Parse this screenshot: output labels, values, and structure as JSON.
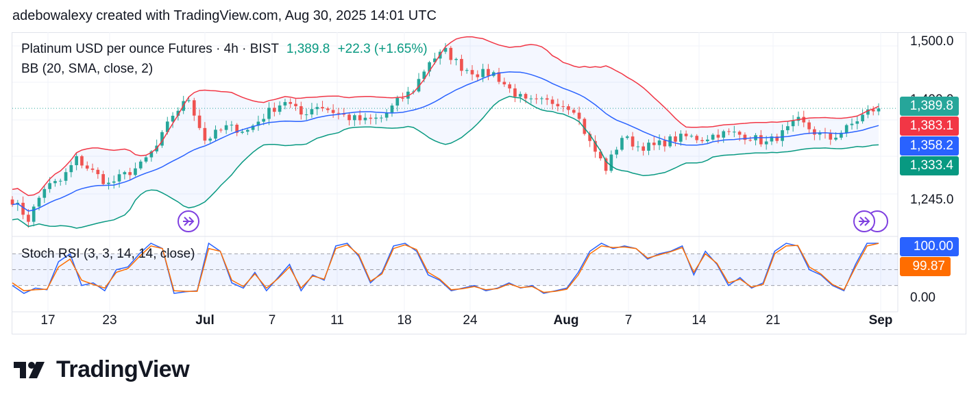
{
  "header": {
    "caption": "adebowalexy created with TradingView.com, Aug 30, 2025 14:01 UTC"
  },
  "legend": {
    "symbol": "Platinum USD per ounce Futures · 4h · BIST",
    "last": "1,389.8",
    "change": "+22.3 (+1.65%)",
    "bb": "BB (20, SMA, close, 2)",
    "stoch": "Stoch RSI (3, 3, 14, 14, close)"
  },
  "price_scale": {
    "top": "1,500.0",
    "mid": "1,400.0",
    "bottom": "1,245.0"
  },
  "price_tags": [
    {
      "label": "1,389.8",
      "color": "#26a69a"
    },
    {
      "label": "1,383.1",
      "color": "#f23645"
    },
    {
      "label": "1,358.2",
      "color": "#2962ff"
    },
    {
      "label": "1,333.4",
      "color": "#089981"
    }
  ],
  "stoch_scale": {
    "bottom": "0.00"
  },
  "stoch_tags": [
    {
      "label": "100.00",
      "color": "#2962ff"
    },
    {
      "label": "99.87",
      "color": "#ff6d00"
    }
  ],
  "time_labels": [
    "17",
    "23",
    "Jul",
    "7",
    "11",
    "18",
    "24",
    "Aug",
    "7",
    "14",
    "21",
    "Sep"
  ],
  "logo": {
    "text": "TradingView"
  },
  "colors": {
    "up": "#26a69a",
    "down": "#ef5350",
    "bb_upper": "#f23645",
    "bb_basis": "#2962ff",
    "bb_lower": "#089981",
    "stoch_k": "#2962ff",
    "stoch_d": "#ff6d00"
  },
  "chart_data": [
    {
      "type": "candlestick",
      "title": "Platinum USD per ounce Futures · 4h · BIST",
      "x_range": [
        "Jun 14, 2025",
        "Aug 30, 2025"
      ],
      "ylim": [
        1190,
        1510
      ],
      "close_path": [
        [
          0,
          1245
        ],
        [
          3,
          1215
        ],
        [
          6,
          1265
        ],
        [
          9,
          1275
        ],
        [
          12,
          1310
        ],
        [
          15,
          1290
        ],
        [
          18,
          1270
        ],
        [
          21,
          1285
        ],
        [
          24,
          1300
        ],
        [
          27,
          1330
        ],
        [
          30,
          1380
        ],
        [
          33,
          1405
        ],
        [
          36,
          1340
        ],
        [
          40,
          1360
        ],
        [
          44,
          1355
        ],
        [
          48,
          1385
        ],
        [
          51,
          1402
        ],
        [
          54,
          1380
        ],
        [
          57,
          1395
        ],
        [
          60,
          1385
        ],
        [
          63,
          1375
        ],
        [
          66,
          1370
        ],
        [
          69,
          1375
        ],
        [
          72,
          1400
        ],
        [
          75,
          1420
        ],
        [
          78,
          1465
        ],
        [
          81,
          1480
        ],
        [
          84,
          1455
        ],
        [
          87,
          1445
        ],
        [
          90,
          1445
        ],
        [
          93,
          1420
        ],
        [
          96,
          1400
        ],
        [
          99,
          1400
        ],
        [
          102,
          1400
        ],
        [
          105,
          1390
        ],
        [
          108,
          1335
        ],
        [
          111,
          1295
        ],
        [
          114,
          1345
        ],
        [
          117,
          1330
        ],
        [
          120,
          1330
        ],
        [
          123,
          1340
        ],
        [
          126,
          1345
        ],
        [
          129,
          1342
        ],
        [
          132,
          1350
        ],
        [
          135,
          1350
        ],
        [
          138,
          1345
        ],
        [
          141,
          1335
        ],
        [
          144,
          1350
        ],
        [
          147,
          1370
        ],
        [
          150,
          1352
        ],
        [
          153,
          1342
        ],
        [
          156,
          1358
        ],
        [
          160,
          1385
        ],
        [
          162,
          1389.8
        ]
      ],
      "last": 1389.8,
      "bb": {
        "period": 20,
        "upper_last": 1383.1,
        "basis_last": 1358.2,
        "lower_last": 1333.4
      }
    },
    {
      "type": "line",
      "title": "Stoch RSI (3, 3, 14, 14, close)",
      "ylim": [
        0,
        100
      ],
      "series": [
        {
          "name": "K",
          "values": [
            20,
            5,
            15,
            12,
            65,
            80,
            20,
            25,
            10,
            50,
            55,
            80,
            100,
            90,
            5,
            8,
            10,
            100,
            85,
            25,
            15,
            45,
            10,
            35,
            60,
            10,
            40,
            30,
            95,
            100,
            75,
            25,
            45,
            95,
            100,
            85,
            40,
            30,
            10,
            15,
            20,
            10,
            15,
            25,
            15,
            20,
            5,
            10,
            15,
            45,
            85,
            100,
            90,
            95,
            90,
            70,
            80,
            85,
            95,
            40,
            85,
            60,
            20,
            35,
            15,
            25,
            85,
            100,
            95,
            50,
            40,
            20,
            10,
            60,
            100,
            100
          ]
        },
        {
          "name": "D",
          "values": [
            25,
            10,
            12,
            13,
            55,
            70,
            30,
            22,
            15,
            45,
            52,
            75,
            95,
            90,
            10,
            9,
            9,
            90,
            85,
            30,
            18,
            42,
            15,
            33,
            55,
            15,
            38,
            32,
            90,
            97,
            78,
            28,
            42,
            90,
            97,
            88,
            45,
            32,
            12,
            14,
            18,
            12,
            14,
            23,
            16,
            18,
            7,
            9,
            13,
            40,
            80,
            95,
            92,
            93,
            90,
            72,
            78,
            84,
            92,
            45,
            80,
            62,
            25,
            32,
            17,
            22,
            80,
            95,
            96,
            55,
            42,
            22,
            12,
            55,
            95,
            99.87
          ]
        }
      ],
      "last_k": 100.0,
      "last_d": 99.87
    }
  ]
}
